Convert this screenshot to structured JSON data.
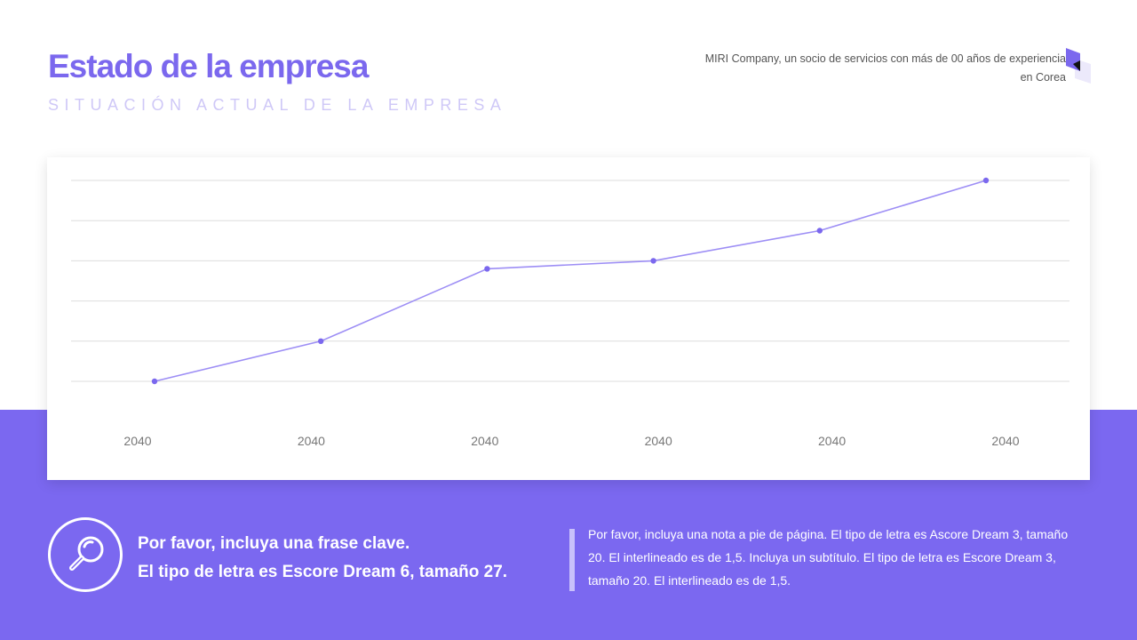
{
  "header": {
    "title": "Estado de la empresa",
    "subtitle": "SITUACIÓN ACTUAL DE LA EMPRESA",
    "company_line1": "MIRI Company, un socio de servicios con más de 00 años de experiencia",
    "company_line2": "en Corea"
  },
  "colors": {
    "accent": "#7b68f0",
    "line": "#9d8ef5",
    "point": "#7b68ee"
  },
  "chart_data": {
    "type": "line",
    "categories": [
      "2040",
      "2040",
      "2040",
      "2040",
      "2040",
      "2040"
    ],
    "values": [
      0,
      1,
      2.8,
      3,
      3.75,
      5
    ],
    "ylim": [
      0,
      5
    ],
    "grid": true,
    "y_ticks_shown": false,
    "title": "",
    "xlabel": "",
    "ylabel": ""
  },
  "footer": {
    "icon": "magnifier-icon",
    "key_line1": "Por favor, incluya una frase clave.",
    "key_line2": "El tipo de letra es Escore Dream 6, tamaño 27.",
    "note": "Por favor, incluya una nota a pie de página. El tipo de letra es Ascore Dream 3, tamaño 20. El interlineado es de 1,5. Incluya un subtítulo. El tipo de letra es Escore Dream 3, tamaño 20. El interlineado es de 1,5."
  }
}
